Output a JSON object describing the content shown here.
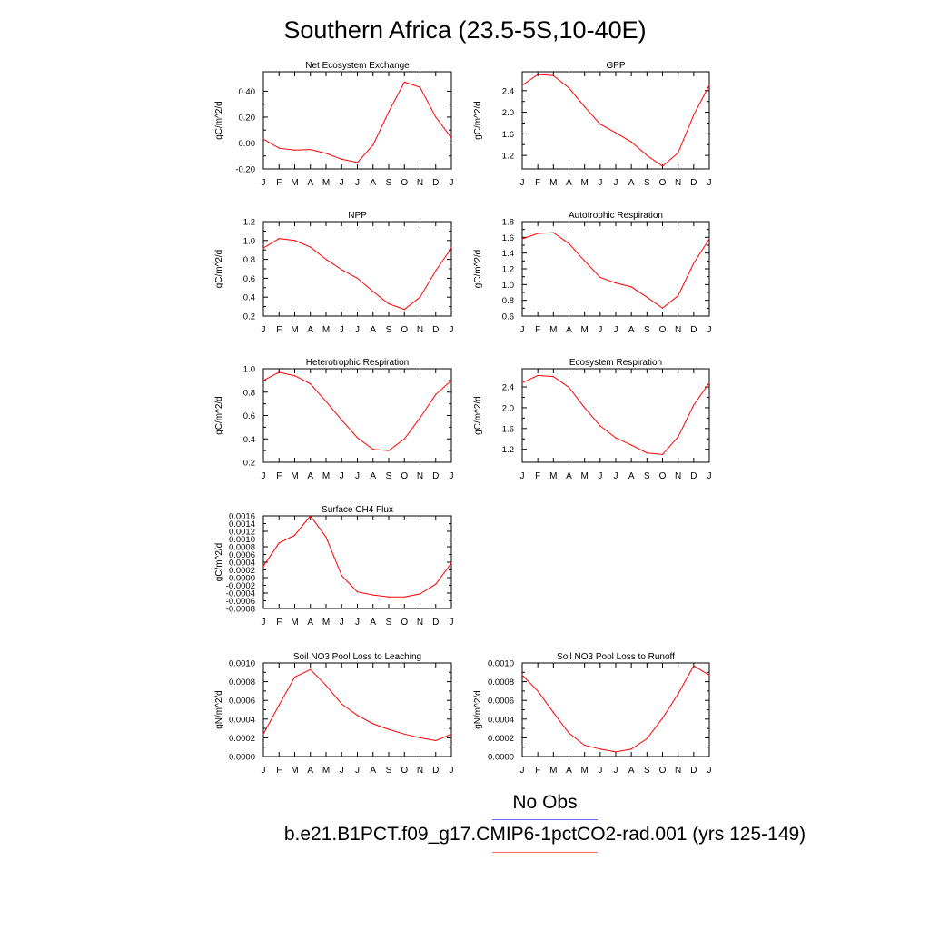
{
  "title": "Southern Africa (23.5-5S,10-40E)",
  "legend": {
    "obs_label": "No Obs",
    "obs_color": "#6b6bff",
    "model_label": "b.e21.B1PCT.f09_g17.CMIP6-1pctCO2-rad.001 (yrs 125-149)",
    "model_color": "#ff0000"
  },
  "chart_data": [
    {
      "type": "line",
      "title": "Net Ecosystem Exchange",
      "ylabel": "gC/m^2/d",
      "categories": [
        "J",
        "F",
        "M",
        "A",
        "M",
        "J",
        "J",
        "A",
        "S",
        "O",
        "N",
        "D",
        "J"
      ],
      "values": [
        0.03,
        -0.04,
        -0.055,
        -0.05,
        -0.08,
        -0.125,
        -0.15,
        -0.015,
        0.24,
        0.47,
        0.43,
        0.2,
        0.04
      ],
      "ylim": [
        -0.2,
        0.55
      ],
      "yticks": [
        -0.2,
        0.0,
        0.2,
        0.4
      ],
      "ytick_labels": [
        "-0.20",
        "0.00",
        "0.20",
        "0.40"
      ],
      "color": "#ff0000"
    },
    {
      "type": "line",
      "title": "GPP",
      "ylabel": "gC/m^2/d",
      "categories": [
        "J",
        "F",
        "M",
        "A",
        "M",
        "J",
        "J",
        "A",
        "S",
        "O",
        "N",
        "D",
        "J"
      ],
      "values": [
        2.5,
        2.7,
        2.68,
        2.45,
        2.1,
        1.78,
        1.62,
        1.45,
        1.2,
        1.0,
        1.25,
        1.95,
        2.5
      ],
      "ylim": [
        0.95,
        2.75
      ],
      "yticks": [
        1.2,
        1.6,
        2.0,
        2.4
      ],
      "ytick_labels": [
        "1.2",
        "1.6",
        "2.0",
        "2.4"
      ],
      "color": "#ff0000"
    },
    {
      "type": "line",
      "title": "NPP",
      "ylabel": "gC/m^2/d",
      "categories": [
        "J",
        "F",
        "M",
        "A",
        "M",
        "J",
        "J",
        "A",
        "S",
        "O",
        "N",
        "D",
        "J"
      ],
      "values": [
        0.92,
        1.02,
        1.0,
        0.93,
        0.8,
        0.69,
        0.6,
        0.46,
        0.33,
        0.27,
        0.4,
        0.68,
        0.92
      ],
      "ylim": [
        0.2,
        1.2
      ],
      "yticks": [
        0.2,
        0.4,
        0.6,
        0.8,
        1.0,
        1.2
      ],
      "ytick_labels": [
        "0.2",
        "0.4",
        "0.6",
        "0.8",
        "1.0",
        "1.2"
      ],
      "color": "#ff0000"
    },
    {
      "type": "line",
      "title": "Autotrophic Respiration",
      "ylabel": "gC/m^2/d",
      "categories": [
        "J",
        "F",
        "M",
        "A",
        "M",
        "J",
        "J",
        "A",
        "S",
        "O",
        "N",
        "D",
        "J"
      ],
      "values": [
        1.58,
        1.65,
        1.66,
        1.52,
        1.3,
        1.09,
        1.02,
        0.97,
        0.84,
        0.7,
        0.86,
        1.27,
        1.58
      ],
      "ylim": [
        0.6,
        1.8
      ],
      "yticks": [
        0.6,
        0.8,
        1.0,
        1.2,
        1.4,
        1.6,
        1.8
      ],
      "ytick_labels": [
        "0.6",
        "0.8",
        "1.0",
        "1.2",
        "1.4",
        "1.6",
        "1.8"
      ],
      "color": "#ff0000"
    },
    {
      "type": "line",
      "title": "Heterotrophic Respiration",
      "ylabel": "gC/m^2/d",
      "categories": [
        "J",
        "F",
        "M",
        "A",
        "M",
        "J",
        "J",
        "A",
        "S",
        "O",
        "N",
        "D",
        "J"
      ],
      "values": [
        0.9,
        0.97,
        0.94,
        0.87,
        0.72,
        0.56,
        0.41,
        0.31,
        0.3,
        0.4,
        0.58,
        0.78,
        0.9
      ],
      "ylim": [
        0.2,
        1.0
      ],
      "yticks": [
        0.2,
        0.4,
        0.6,
        0.8,
        1.0
      ],
      "ytick_labels": [
        "0.2",
        "0.4",
        "0.6",
        "0.8",
        "1.0"
      ],
      "color": "#ff0000"
    },
    {
      "type": "line",
      "title": "Ecosystem Respiration",
      "ylabel": "gC/m^2/d",
      "categories": [
        "J",
        "F",
        "M",
        "A",
        "M",
        "J",
        "J",
        "A",
        "S",
        "O",
        "N",
        "D",
        "J"
      ],
      "values": [
        2.48,
        2.62,
        2.6,
        2.39,
        2.0,
        1.65,
        1.42,
        1.28,
        1.13,
        1.1,
        1.44,
        2.05,
        2.48
      ],
      "ylim": [
        0.95,
        2.75
      ],
      "yticks": [
        1.2,
        1.6,
        2.0,
        2.4
      ],
      "ytick_labels": [
        "1.2",
        "1.6",
        "2.0",
        "2.4"
      ],
      "color": "#ff0000"
    },
    {
      "type": "line",
      "title": "Surface CH4 Flux",
      "ylabel": "gC/m^2/d",
      "categories": [
        "J",
        "F",
        "M",
        "A",
        "M",
        "J",
        "J",
        "A",
        "S",
        "O",
        "N",
        "D",
        "J"
      ],
      "values": [
        0.0003,
        0.0009,
        0.0011,
        0.0016,
        0.00105,
        5e-05,
        -0.00037,
        -0.00045,
        -0.0005,
        -0.0005,
        -0.00042,
        -0.00017,
        0.00038
      ],
      "ylim": [
        -0.0008,
        0.0016
      ],
      "yticks": [
        -0.0008,
        -0.0004,
        0.0,
        0.0004,
        0.0008,
        0.0012,
        0.0016
      ],
      "ytick_labels": [
        "-0.0008",
        "-0.0004",
        "0.0000",
        "0.0004",
        "0.0008",
        "0.0012",
        "0.0016"
      ],
      "extra_ytick_labels": [
        "-0.0006",
        "-0.0002",
        "0.0002",
        "0.0006",
        "0.0010",
        "0.0014"
      ],
      "color": "#ff0000"
    },
    {
      "type": "line",
      "title": "Soil NO3 Pool Loss to Leaching",
      "ylabel": "gN/m^2/d",
      "categories": [
        "J",
        "F",
        "M",
        "A",
        "M",
        "J",
        "J",
        "A",
        "S",
        "O",
        "N",
        "D",
        "J"
      ],
      "values": [
        0.00024,
        0.00055,
        0.00085,
        0.00093,
        0.00076,
        0.00056,
        0.00044,
        0.00035,
        0.00029,
        0.00024,
        0.0002,
        0.00017,
        0.00024
      ],
      "ylim": [
        0.0,
        0.001
      ],
      "yticks": [
        0.0,
        0.0002,
        0.0004,
        0.0006,
        0.0008,
        0.001
      ],
      "ytick_labels": [
        "0.0000",
        "0.0002",
        "0.0004",
        "0.0006",
        "0.0008",
        "0.0010"
      ],
      "color": "#ff0000"
    },
    {
      "type": "line",
      "title": "Soil NO3 Pool Loss to Runoff",
      "ylabel": "gN/m^2/d",
      "categories": [
        "J",
        "F",
        "M",
        "A",
        "M",
        "J",
        "J",
        "A",
        "S",
        "O",
        "N",
        "D",
        "J"
      ],
      "values": [
        0.00087,
        0.0007,
        0.00047,
        0.00025,
        0.00012,
        8e-05,
        5e-05,
        8e-05,
        0.00019,
        0.00041,
        0.00067,
        0.00097,
        0.00087
      ],
      "ylim": [
        0.0,
        0.001
      ],
      "yticks": [
        0.0,
        0.0002,
        0.0004,
        0.0006,
        0.0008,
        0.001
      ],
      "ytick_labels": [
        "0.0000",
        "0.0002",
        "0.0004",
        "0.0006",
        "0.0008",
        "0.0010"
      ],
      "color": "#ff0000"
    }
  ]
}
